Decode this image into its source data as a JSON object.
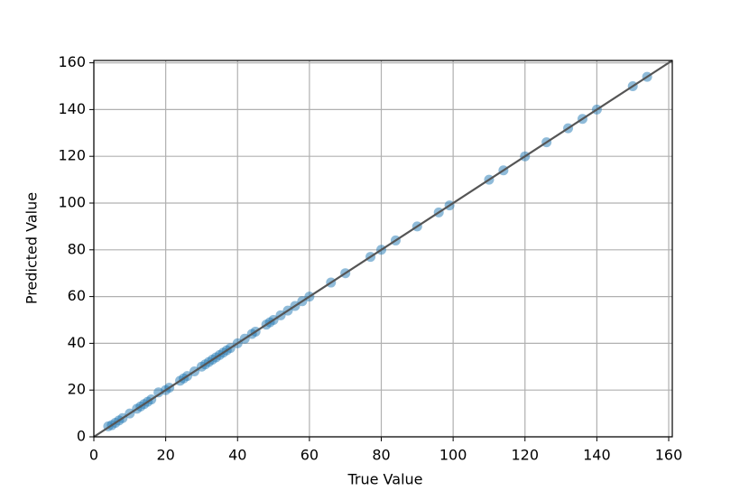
{
  "chart_data": {
    "type": "scatter",
    "x_label": "True Value",
    "y_label": "Predicted Value",
    "x": [
      4,
      5,
      6,
      7,
      8,
      10,
      12,
      13,
      14,
      15,
      16,
      18,
      20,
      21,
      24,
      25,
      26,
      28,
      30,
      31,
      32,
      33,
      34,
      35,
      36,
      37,
      38,
      40,
      42,
      44,
      45,
      48,
      49,
      50,
      52,
      54,
      56,
      58,
      60,
      66,
      70,
      77,
      80,
      84,
      90,
      96,
      99,
      110,
      114,
      120,
      126,
      132,
      136,
      140,
      150,
      154
    ],
    "series": [
      {
        "color": "#1f77b4",
        "values": [
          4.5,
          5,
          6,
          7,
          8,
          10,
          12,
          13,
          14,
          15,
          16,
          19,
          20,
          21,
          24,
          25,
          26,
          28,
          30,
          31,
          32,
          33,
          34,
          35,
          36,
          37,
          38,
          40,
          42,
          44,
          45,
          48,
          49,
          50,
          52,
          54,
          56,
          58,
          60,
          66,
          70,
          77,
          80,
          84,
          90,
          96,
          99,
          110,
          114,
          120,
          126,
          132,
          136,
          140,
          150,
          154
        ]
      }
    ],
    "identity_line_color": "#555555",
    "xlim": [
      0,
      161
    ],
    "ylim": [
      0,
      161
    ],
    "xticks": [
      0,
      20,
      40,
      60,
      80,
      100,
      120,
      140,
      160
    ],
    "yticks": [
      0,
      20,
      40,
      60,
      80,
      100,
      120,
      140,
      160
    ],
    "grid": true
  }
}
